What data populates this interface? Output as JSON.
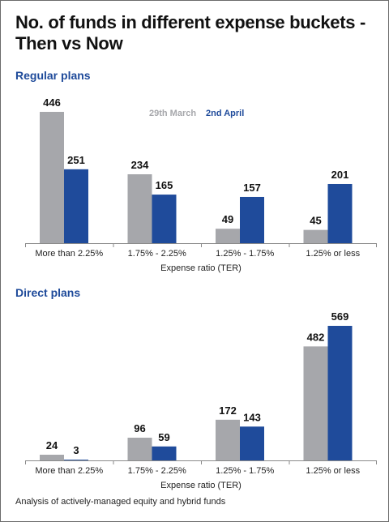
{
  "title": "No. of funds in different expense buckets  - Then vs Now",
  "footnote": "Analysis of actively-managed equity and hybrid funds",
  "colors": {
    "then": "#a6a7ab",
    "now": "#1f4b9b",
    "legend_then": "#a6a7ab",
    "legend_now": "#1f4b9b"
  },
  "chart_data": [
    {
      "type": "bar",
      "title": "Regular plans",
      "categories": [
        "More than 2.25%",
        "1.75% - 2.25%",
        "1.25% - 1.75%",
        "1.25% or less"
      ],
      "series": [
        {
          "name": "29th March",
          "values": [
            446,
            234,
            49,
            45
          ]
        },
        {
          "name": "2nd April",
          "values": [
            251,
            165,
            157,
            201
          ]
        }
      ],
      "xlabel": "Expense ratio (TER)",
      "ylabel": "",
      "ylim": [
        0,
        446
      ],
      "legend": "top-center",
      "grid": false
    },
    {
      "type": "bar",
      "title": "Direct plans",
      "categories": [
        "More than 2.25%",
        "1.75% - 2.25%",
        "1.25% - 1.75%",
        "1.25% or less"
      ],
      "series": [
        {
          "name": "29th March",
          "values": [
            24,
            96,
            172,
            482
          ]
        },
        {
          "name": "2nd April",
          "values": [
            3,
            59,
            143,
            569
          ]
        }
      ],
      "xlabel": "Expense ratio (TER)",
      "ylabel": "",
      "ylim": [
        0,
        569
      ],
      "legend": "none",
      "grid": false
    }
  ]
}
